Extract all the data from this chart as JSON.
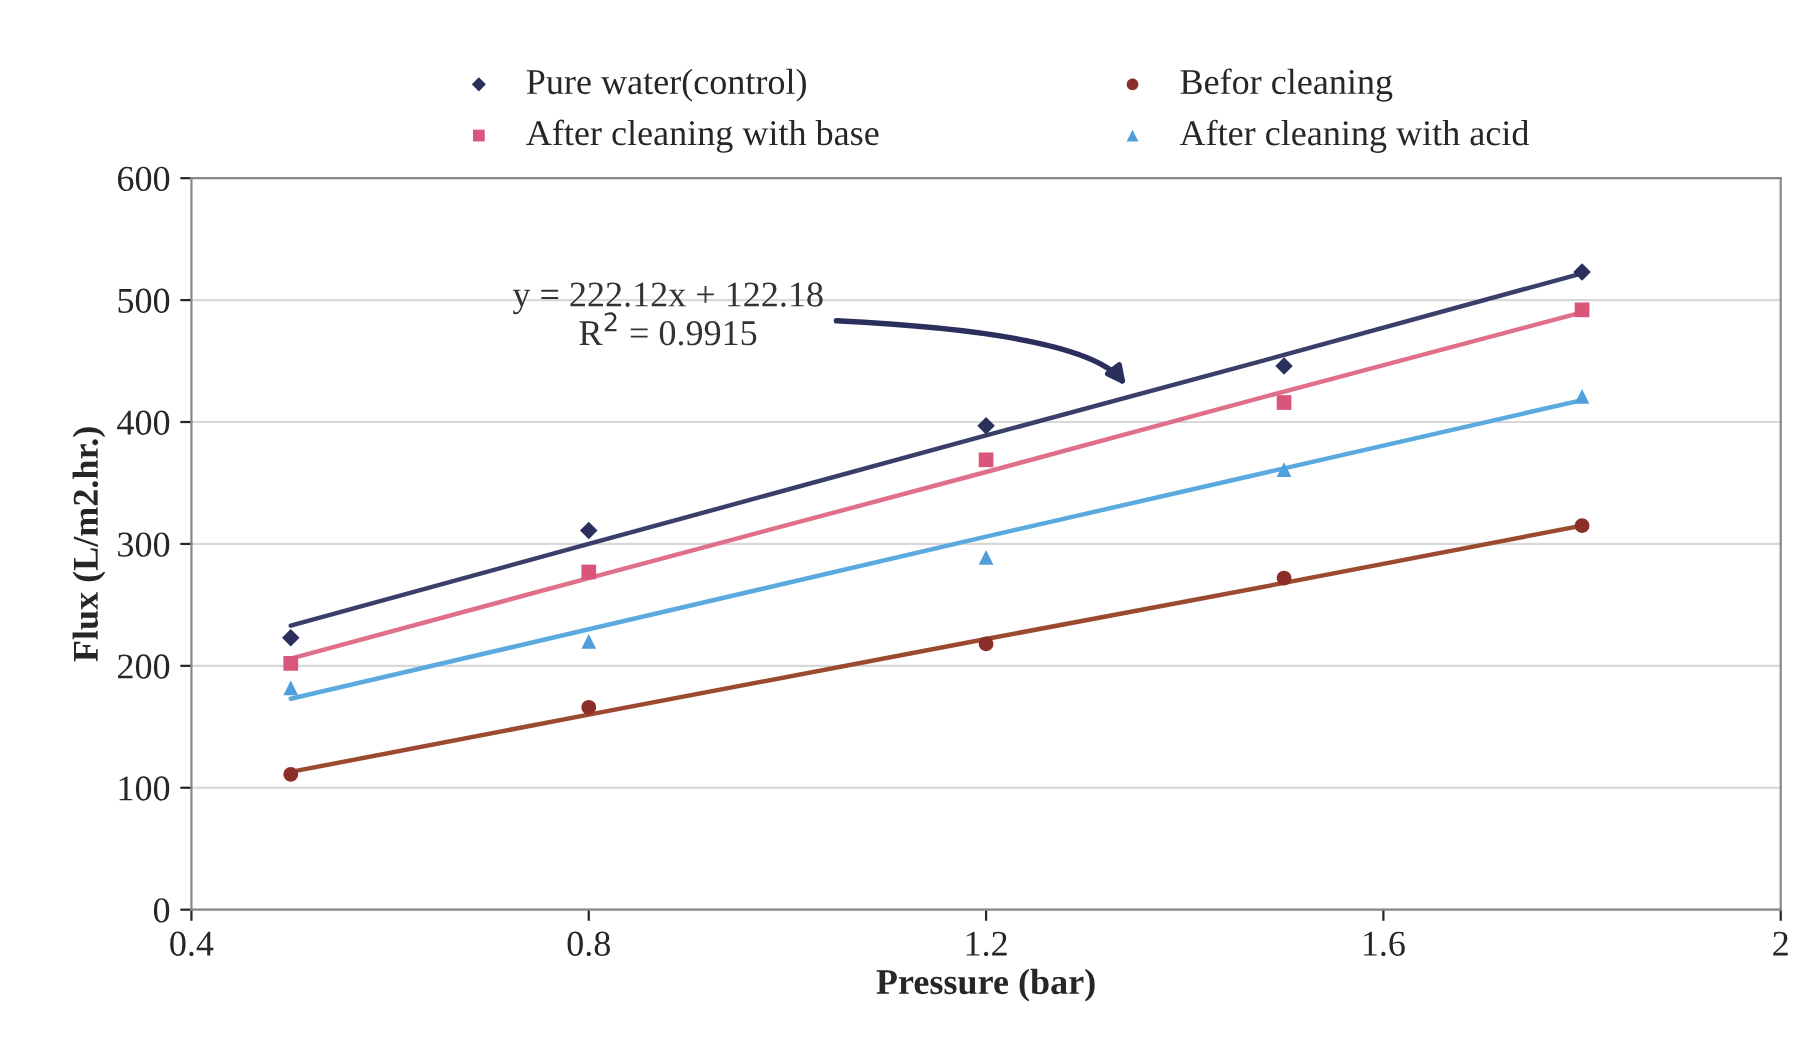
{
  "chart_data": {
    "type": "scatter",
    "xlabel": "Pressure (bar)",
    "ylabel": "Flux (L/m2.hr.)",
    "xlim": [
      0.4,
      2
    ],
    "xticks": [
      0.4,
      0.8,
      1.2,
      1.6,
      2
    ],
    "ylim": [
      0,
      600
    ],
    "yticks": [
      0,
      100,
      200,
      300,
      400,
      500,
      600
    ],
    "grid": "y",
    "legend": "top",
    "x": [
      0.5,
      0.8,
      1.2,
      1.5,
      1.8
    ],
    "series": [
      {
        "name": "Pure water(control)",
        "color": "#2b2f5e",
        "marker": "diamond",
        "values": [
          223,
          311,
          397,
          446,
          523
        ]
      },
      {
        "name": "After cleaning with base",
        "color": "#d9557a",
        "marker": "square",
        "values": [
          202,
          277,
          369,
          416,
          492
        ]
      },
      {
        "name": "Befor cleaning",
        "color": "#8b2e2a",
        "marker": "circle",
        "values": [
          111,
          166,
          218,
          272,
          315
        ]
      },
      {
        "name": "After cleaning with acid",
        "color": "#4f9fd8",
        "marker": "triangle",
        "values": [
          182,
          220,
          289,
          361,
          421
        ]
      },
      {
        "type": "line",
        "color": "#3a3f6a",
        "marker": "none",
        "values": [
          233,
          300,
          389,
          455,
          522
        ]
      },
      {
        "type": "line",
        "color": "#e0708a",
        "marker": "none",
        "values": [
          206,
          272,
          359,
          425,
          490
        ]
      },
      {
        "type": "line",
        "color": "#9b4a30",
        "marker": "none",
        "values": [
          113,
          160,
          222,
          268,
          315
        ]
      },
      {
        "type": "line",
        "color": "#5aaae0",
        "marker": "none",
        "values": [
          173,
          230,
          306,
          362,
          418
        ]
      }
    ],
    "annotations": [
      "y = 222.12x + 122.18\nR$^{2}$ = 0.9915"
    ]
  }
}
